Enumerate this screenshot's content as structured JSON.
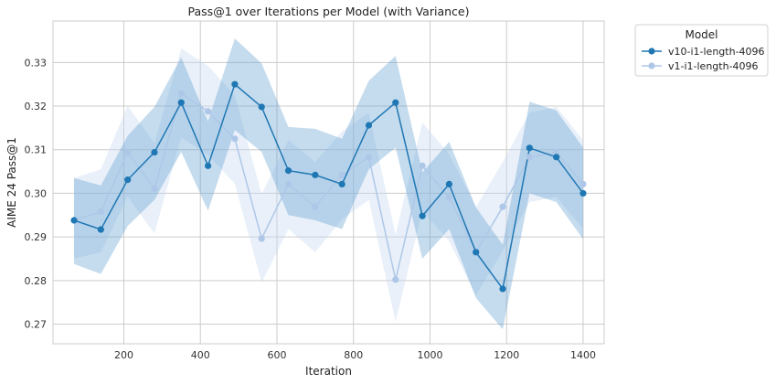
{
  "chart_data": {
    "type": "line",
    "title": "Pass@1 over Iterations per Model (with Variance)",
    "xlabel": "Iteration",
    "ylabel": "AIME 24 Pass@1",
    "xlim": [
      15,
      1455
    ],
    "ylim": [
      0.2655,
      0.3395
    ],
    "x_ticks": [
      200,
      400,
      600,
      800,
      1000,
      1200,
      1400
    ],
    "y_ticks": [
      0.27,
      0.28,
      0.29,
      0.3,
      0.31,
      0.32,
      0.33
    ],
    "grid": true,
    "legend": {
      "title": "Model",
      "placement": "outside-top-right"
    },
    "x": [
      70,
      140,
      210,
      280,
      350,
      420,
      490,
      560,
      630,
      700,
      770,
      840,
      910,
      980,
      1050,
      1120,
      1190,
      1260,
      1330,
      1400
    ],
    "series": [
      {
        "name": "v10-i1-length-4096",
        "color": "#1f77b4",
        "band_color": "#5a9ccd",
        "values": [
          0.2938,
          0.2917,
          0.3031,
          0.3094,
          0.3208,
          0.3063,
          0.325,
          0.3198,
          0.3052,
          0.3042,
          0.3021,
          0.3156,
          0.3208,
          0.2948,
          0.3021,
          0.2865,
          0.2781,
          0.3104,
          0.3083,
          0.3
        ],
        "lower": [
          0.2838,
          0.2815,
          0.2925,
          0.2985,
          0.3095,
          0.296,
          0.3145,
          0.3095,
          0.295,
          0.2938,
          0.2918,
          0.3055,
          0.3105,
          0.285,
          0.2918,
          0.276,
          0.2688,
          0.3,
          0.298,
          0.2895
        ],
        "upper": [
          0.3035,
          0.3018,
          0.3132,
          0.3198,
          0.3312,
          0.3165,
          0.3355,
          0.3298,
          0.3152,
          0.3148,
          0.3125,
          0.3258,
          0.3315,
          0.3048,
          0.3118,
          0.2968,
          0.2882,
          0.321,
          0.319,
          0.3105
        ]
      },
      {
        "name": "v1-i1-length-4096",
        "color": "#aec7e8",
        "band_color": "#c6d8ee",
        "values": [
          0.2938,
          0.2958,
          0.3094,
          0.301,
          0.3229,
          0.3188,
          0.3125,
          0.2896,
          0.3021,
          0.2969,
          0.3042,
          0.3083,
          0.2802,
          0.3063,
          0.299,
          0.2865,
          0.2969,
          0.3083,
          0.3094,
          0.3021
        ],
        "lower": [
          0.285,
          0.2865,
          0.2992,
          0.2908,
          0.3128,
          0.3088,
          0.3022,
          0.2795,
          0.2918,
          0.2865,
          0.294,
          0.2985,
          0.2705,
          0.296,
          0.289,
          0.2765,
          0.2868,
          0.298,
          0.2992,
          0.2918
        ],
        "upper": [
          0.3035,
          0.3055,
          0.32,
          0.3115,
          0.3332,
          0.3292,
          0.3225,
          0.2998,
          0.3122,
          0.3072,
          0.3142,
          0.3185,
          0.2905,
          0.3162,
          0.309,
          0.2968,
          0.3072,
          0.3185,
          0.3198,
          0.3122
        ]
      }
    ]
  }
}
